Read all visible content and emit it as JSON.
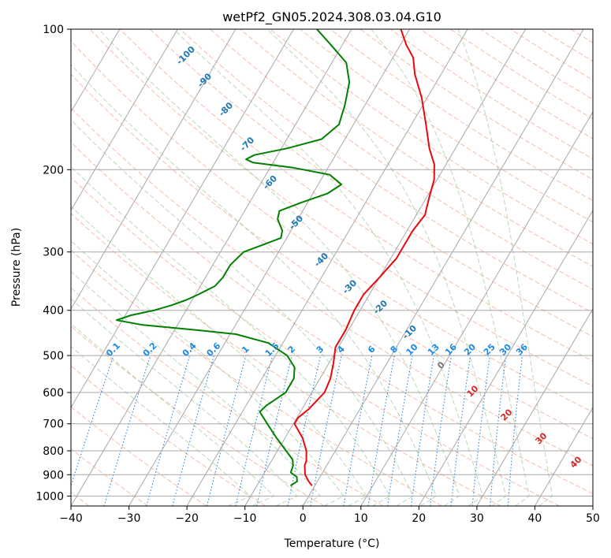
{
  "chart_data": {
    "type": "line",
    "subtype": "skew-T log-P diagram",
    "title": "wetPf2_GN05.2024.308.03.04.G10",
    "xlabel": "Temperature (°C)",
    "ylabel": "Pressure (hPa)",
    "xlim": [
      -40,
      50
    ],
    "ylim": [
      1050,
      100
    ],
    "y_scale": "log",
    "x_ticks": [
      -40,
      -30,
      -20,
      -10,
      0,
      10,
      20,
      30,
      40,
      50
    ],
    "x_tick_labels": [
      "−40",
      "−30",
      "−20",
      "−10",
      "0",
      "10",
      "20",
      "30",
      "40",
      "50"
    ],
    "y_ticks": [
      1000,
      900,
      800,
      700,
      600,
      500,
      400,
      300,
      200,
      100
    ],
    "y_tick_labels": [
      "1000",
      "900",
      "800",
      "700",
      "600",
      "500",
      "400",
      "300",
      "200",
      "100"
    ],
    "grid": true,
    "colors": {
      "temperature": "#e8090e",
      "dewpoint": "#008000",
      "isotherm": "#a8a8a8",
      "dry_adiabat": "#f4a58a",
      "moist_adiabat": "#9fce9f",
      "mixing_ratio": "#1f88e4",
      "dry_adiabat_labels": "#d62728",
      "moist_adiabat_labels": "#1f77b4",
      "mixing_ratio_labels": "#1e88e5"
    },
    "series": [
      {
        "key": "temperature",
        "points": [
          {
            "p": 950,
            "t": -0.5
          },
          {
            "p": 930,
            "t": -1.5
          },
          {
            "p": 900,
            "t": -2.8
          },
          {
            "p": 860,
            "t": -3.8
          },
          {
            "p": 840,
            "t": -4.0
          },
          {
            "p": 800,
            "t": -5.0
          },
          {
            "p": 750,
            "t": -7.0
          },
          {
            "p": 700,
            "t": -9.8
          },
          {
            "p": 680,
            "t": -9.8
          },
          {
            "p": 650,
            "t": -8.8
          },
          {
            "p": 600,
            "t": -7.8
          },
          {
            "p": 560,
            "t": -8.2
          },
          {
            "p": 520,
            "t": -9.2
          },
          {
            "p": 480,
            "t": -10.5
          },
          {
            "p": 440,
            "t": -10.5
          },
          {
            "p": 400,
            "t": -11.0
          },
          {
            "p": 370,
            "t": -11.0
          },
          {
            "p": 340,
            "t": -10.0
          },
          {
            "p": 310,
            "t": -9.0
          },
          {
            "p": 290,
            "t": -9.0
          },
          {
            "p": 270,
            "t": -9.0
          },
          {
            "p": 250,
            "t": -8.5
          },
          {
            "p": 230,
            "t": -9.5
          },
          {
            "p": 210,
            "t": -10.5
          },
          {
            "p": 195,
            "t": -12.0
          },
          {
            "p": 180,
            "t": -14.5
          },
          {
            "p": 160,
            "t": -17.5
          },
          {
            "p": 140,
            "t": -21.0
          },
          {
            "p": 125,
            "t": -24.5
          },
          {
            "p": 115,
            "t": -26.5
          },
          {
            "p": 108,
            "t": -29.0
          },
          {
            "p": 100,
            "t": -31.5
          }
        ]
      },
      {
        "key": "dewpoint",
        "points": [
          {
            "p": 950,
            "t": -4.2
          },
          {
            "p": 930,
            "t": -3.5
          },
          {
            "p": 910,
            "t": -4.0
          },
          {
            "p": 890,
            "t": -5.5
          },
          {
            "p": 860,
            "t": -5.8
          },
          {
            "p": 835,
            "t": -6.5
          },
          {
            "p": 800,
            "t": -8.5
          },
          {
            "p": 750,
            "t": -11.5
          },
          {
            "p": 700,
            "t": -14.5
          },
          {
            "p": 660,
            "t": -17.0
          },
          {
            "p": 640,
            "t": -16.5
          },
          {
            "p": 600,
            "t": -14.5
          },
          {
            "p": 560,
            "t": -14.5
          },
          {
            "p": 530,
            "t": -15.5
          },
          {
            "p": 500,
            "t": -18.0
          },
          {
            "p": 470,
            "t": -22.5
          },
          {
            "p": 450,
            "t": -29.0
          },
          {
            "p": 440,
            "t": -37.0
          },
          {
            "p": 430,
            "t": -46.0
          },
          {
            "p": 420,
            "t": -51.0
          },
          {
            "p": 410,
            "t": -49.0
          },
          {
            "p": 400,
            "t": -45.5
          },
          {
            "p": 390,
            "t": -43.0
          },
          {
            "p": 380,
            "t": -41.0
          },
          {
            "p": 370,
            "t": -39.5
          },
          {
            "p": 355,
            "t": -37.5
          },
          {
            "p": 340,
            "t": -37.0
          },
          {
            "p": 320,
            "t": -37.0
          },
          {
            "p": 300,
            "t": -36.0
          },
          {
            "p": 290,
            "t": -33.5
          },
          {
            "p": 280,
            "t": -31.0
          },
          {
            "p": 270,
            "t": -31.5
          },
          {
            "p": 255,
            "t": -33.5
          },
          {
            "p": 245,
            "t": -34.0
          },
          {
            "p": 235,
            "t": -31.0
          },
          {
            "p": 225,
            "t": -27.5
          },
          {
            "p": 215,
            "t": -26.0
          },
          {
            "p": 205,
            "t": -29.0
          },
          {
            "p": 198,
            "t": -36.0
          },
          {
            "p": 193,
            "t": -43.5
          },
          {
            "p": 190,
            "t": -45.0
          },
          {
            "p": 186,
            "t": -44.0
          },
          {
            "p": 180,
            "t": -39.0
          },
          {
            "p": 172,
            "t": -34.0
          },
          {
            "p": 160,
            "t": -32.5
          },
          {
            "p": 145,
            "t": -33.5
          },
          {
            "p": 130,
            "t": -35.0
          },
          {
            "p": 118,
            "t": -37.5
          },
          {
            "p": 108,
            "t": -42.0
          },
          {
            "p": 100,
            "t": -46.0
          }
        ]
      }
    ],
    "dry_adiabat_labels": [
      "0",
      "10",
      "20",
      "30",
      "40"
    ],
    "moist_adiabat_labels": [
      "-100",
      "-90",
      "-80",
      "-70",
      "-60",
      "-50",
      "-40",
      "-30",
      "-20",
      "-10"
    ],
    "mixing_ratio_labels": [
      "0.1",
      "0.2",
      "0.4",
      "0.6",
      "1",
      "1.5",
      "2",
      "3",
      "4",
      "6",
      "8",
      "10",
      "13",
      "16",
      "20",
      "25",
      "30",
      "36"
    ]
  }
}
